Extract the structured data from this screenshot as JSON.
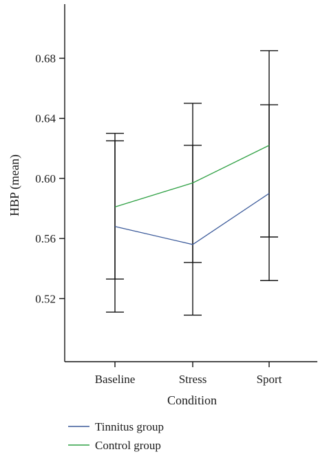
{
  "chart_data": {
    "type": "line",
    "xlabel": "Condition",
    "ylabel": "HBP (mean)",
    "categories": [
      "Baseline",
      "Stress",
      "Sport"
    ],
    "ylim": [
      0.478,
      0.716
    ],
    "yticks": [
      0.52,
      0.56,
      0.6,
      0.64,
      0.68
    ],
    "ytick_labels": [
      "0.52",
      "0.56",
      "0.60",
      "0.64",
      "0.68"
    ],
    "grid": false,
    "legend_position": "bottom-left",
    "series": [
      {
        "name": "Tinnitus group",
        "color": "#3b5a9a",
        "values": [
          0.568,
          0.556,
          0.59
        ],
        "err_low": [
          0.511,
          0.509,
          0.532
        ],
        "err_high": [
          0.625,
          0.622,
          0.649
        ]
      },
      {
        "name": "Control group",
        "color": "#2ea043",
        "values": [
          0.581,
          0.597,
          0.622
        ],
        "err_low": [
          0.533,
          0.544,
          0.561
        ],
        "err_high": [
          0.63,
          0.65,
          0.685
        ]
      }
    ]
  }
}
